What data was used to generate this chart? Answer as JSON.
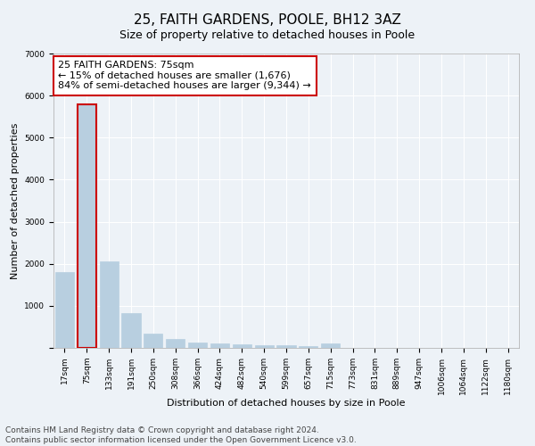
{
  "title": "25, FAITH GARDENS, POOLE, BH12 3AZ",
  "subtitle": "Size of property relative to detached houses in Poole",
  "xlabel": "Distribution of detached houses by size in Poole",
  "ylabel": "Number of detached properties",
  "categories": [
    "17sqm",
    "75sqm",
    "133sqm",
    "191sqm",
    "250sqm",
    "308sqm",
    "366sqm",
    "424sqm",
    "482sqm",
    "540sqm",
    "599sqm",
    "657sqm",
    "715sqm",
    "773sqm",
    "831sqm",
    "889sqm",
    "947sqm",
    "1006sqm",
    "1064sqm",
    "1122sqm",
    "1180sqm"
  ],
  "values": [
    1800,
    5800,
    2050,
    820,
    340,
    210,
    130,
    105,
    75,
    60,
    55,
    50,
    100,
    0,
    0,
    0,
    0,
    0,
    0,
    0,
    0
  ],
  "highlight_index": 1,
  "bar_color": "#b8cfe0",
  "highlight_bar_color": "#b8cfe0",
  "ylim": [
    0,
    7000
  ],
  "yticks": [
    0,
    1000,
    2000,
    3000,
    4000,
    5000,
    6000,
    7000
  ],
  "annotation_text": "25 FAITH GARDENS: 75sqm\n← 15% of detached houses are smaller (1,676)\n84% of semi-detached houses are larger (9,344) →",
  "footer_line1": "Contains HM Land Registry data © Crown copyright and database right 2024.",
  "footer_line2": "Contains public sector information licensed under the Open Government Licence v3.0.",
  "bg_color": "#edf2f7",
  "plot_bg_color": "#edf2f7",
  "grid_color": "#ffffff",
  "box_edge_color": "#cc0000",
  "highlight_edge_color": "#cc0000",
  "title_fontsize": 11,
  "subtitle_fontsize": 9,
  "axis_label_fontsize": 8,
  "tick_fontsize": 6.5,
  "annotation_fontsize": 8,
  "footer_fontsize": 6.5
}
